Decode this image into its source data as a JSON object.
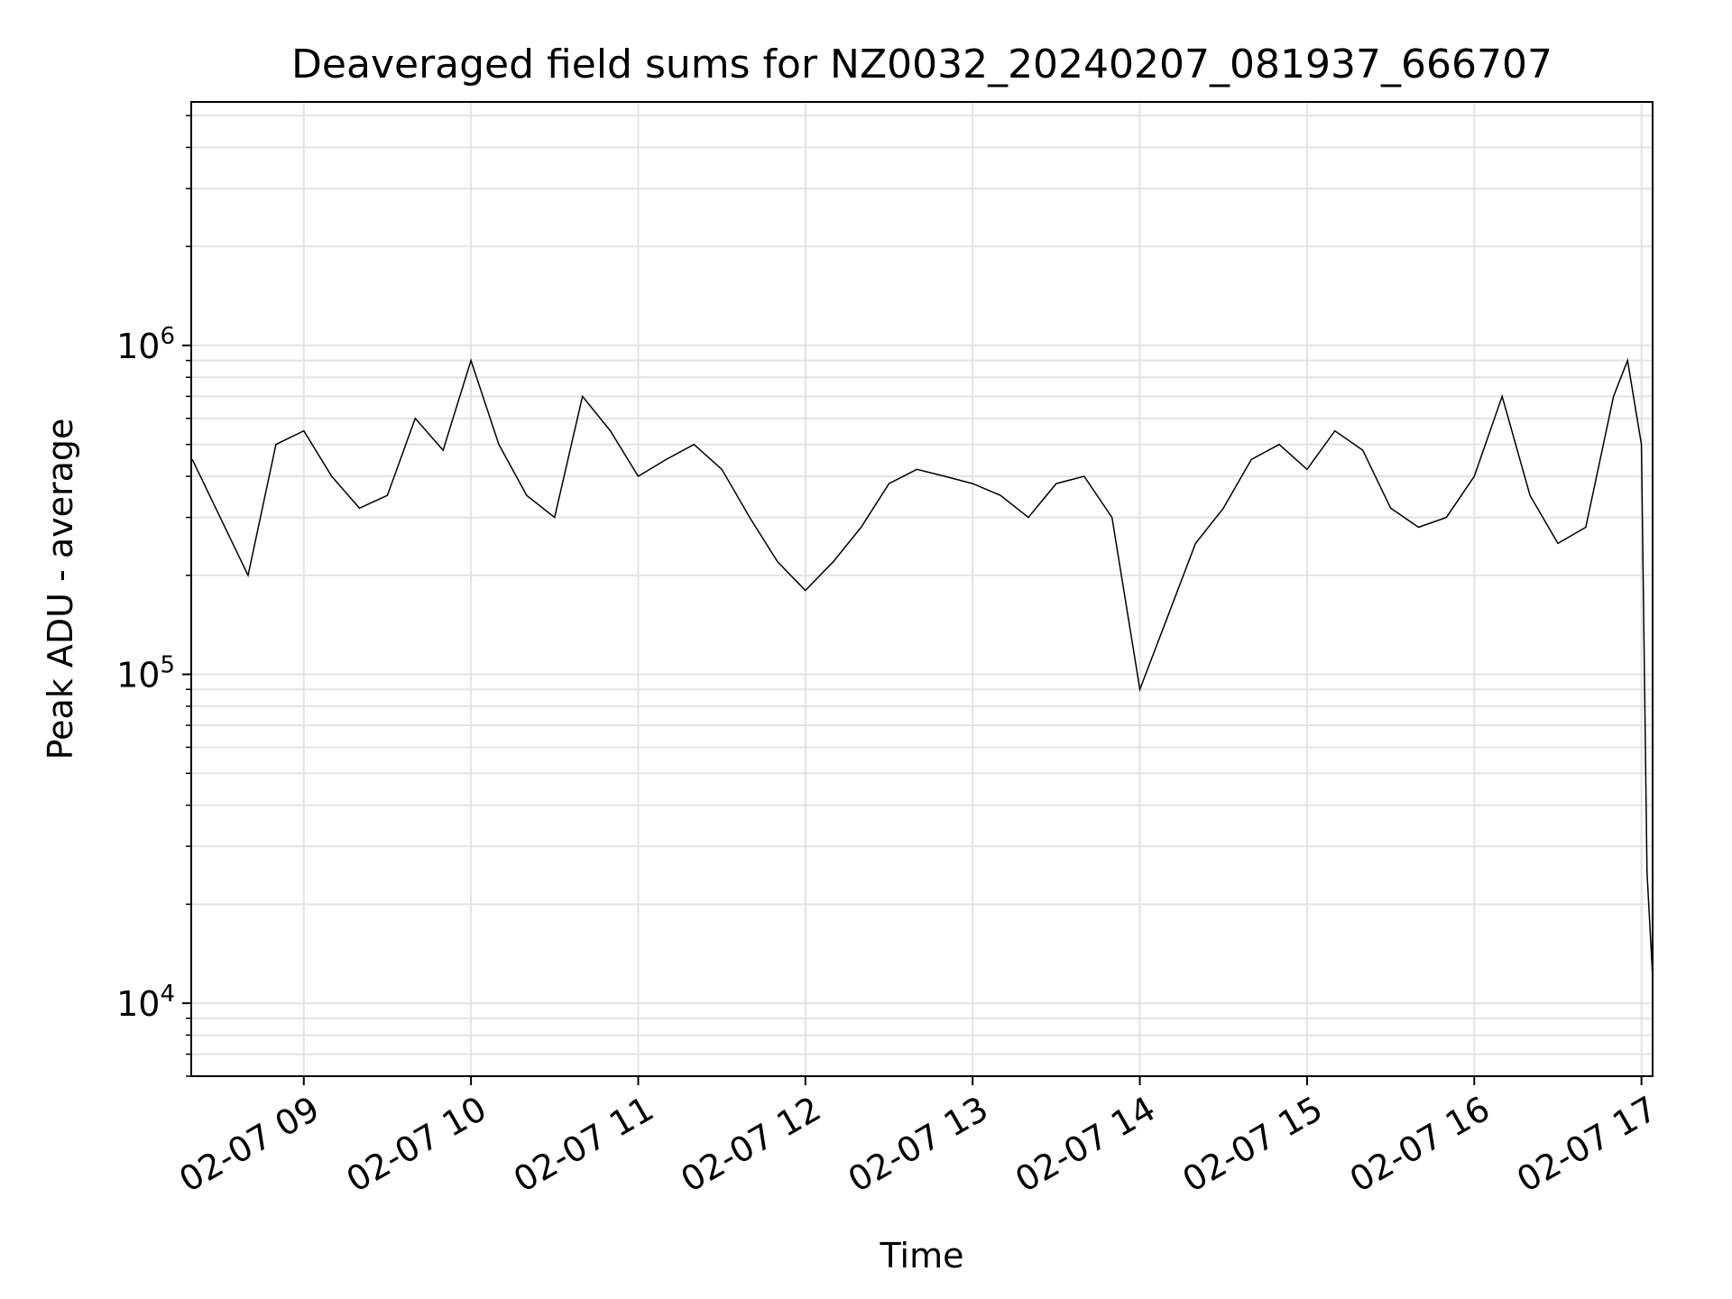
{
  "chart_data": {
    "type": "line",
    "title": "Deaveraged field sums for NZ0032_20240207_081937_666707",
    "xlabel": "Time",
    "ylabel": "Peak ADU - average",
    "y_scale": "log",
    "ylim": [
      6000,
      5500000
    ],
    "xlim": [
      "2024-02-07 08:19:37",
      "2024-02-07 17:04:00"
    ],
    "grid": true,
    "line_color": "#000000",
    "grid_color": "#e3e3e3",
    "x_ticks": [
      {
        "time": "2024-02-07 09:00",
        "label": "02-07 09"
      },
      {
        "time": "2024-02-07 10:00",
        "label": "02-07 10"
      },
      {
        "time": "2024-02-07 11:00",
        "label": "02-07 11"
      },
      {
        "time": "2024-02-07 12:00",
        "label": "02-07 12"
      },
      {
        "time": "2024-02-07 13:00",
        "label": "02-07 13"
      },
      {
        "time": "2024-02-07 14:00",
        "label": "02-07 14"
      },
      {
        "time": "2024-02-07 15:00",
        "label": "02-07 15"
      },
      {
        "time": "2024-02-07 16:00",
        "label": "02-07 16"
      },
      {
        "time": "2024-02-07 17:00",
        "label": "02-07 17"
      }
    ],
    "y_ticks": [
      {
        "value": 10000,
        "base": "10",
        "exp": "4"
      },
      {
        "value": 100000,
        "base": "10",
        "exp": "5"
      },
      {
        "value": 1000000,
        "base": "10",
        "exp": "6"
      }
    ],
    "series": [
      {
        "time": [
          "2024-02-07 08:20",
          "2024-02-07 08:30",
          "2024-02-07 08:40",
          "2024-02-07 08:50",
          "2024-02-07 09:00",
          "2024-02-07 09:10",
          "2024-02-07 09:20",
          "2024-02-07 09:30",
          "2024-02-07 09:40",
          "2024-02-07 09:50",
          "2024-02-07 10:00",
          "2024-02-07 10:10",
          "2024-02-07 10:20",
          "2024-02-07 10:30",
          "2024-02-07 10:40",
          "2024-02-07 10:50",
          "2024-02-07 11:00",
          "2024-02-07 11:10",
          "2024-02-07 11:20",
          "2024-02-07 11:30",
          "2024-02-07 11:40",
          "2024-02-07 11:50",
          "2024-02-07 12:00",
          "2024-02-07 12:10",
          "2024-02-07 12:20",
          "2024-02-07 12:30",
          "2024-02-07 12:40",
          "2024-02-07 12:50",
          "2024-02-07 13:00",
          "2024-02-07 13:10",
          "2024-02-07 13:20",
          "2024-02-07 13:30",
          "2024-02-07 13:40",
          "2024-02-07 13:50",
          "2024-02-07 14:00",
          "2024-02-07 14:10",
          "2024-02-07 14:20",
          "2024-02-07 14:30",
          "2024-02-07 14:40",
          "2024-02-07 14:50",
          "2024-02-07 15:00",
          "2024-02-07 15:10",
          "2024-02-07 15:20",
          "2024-02-07 15:30",
          "2024-02-07 15:40",
          "2024-02-07 15:50",
          "2024-02-07 16:00",
          "2024-02-07 16:10",
          "2024-02-07 16:20",
          "2024-02-07 16:30",
          "2024-02-07 16:40",
          "2024-02-07 16:50",
          "2024-02-07 16:55",
          "2024-02-07 17:00",
          "2024-02-07 17:02",
          "2024-02-07 17:04"
        ],
        "values": [
          450000,
          300000,
          200000,
          500000,
          550000,
          400000,
          320000,
          350000,
          600000,
          480000,
          900000,
          500000,
          350000,
          300000,
          700000,
          550000,
          400000,
          450000,
          500000,
          420000,
          300000,
          220000,
          180000,
          220000,
          280000,
          380000,
          420000,
          400000,
          380000,
          350000,
          300000,
          380000,
          400000,
          300000,
          90000,
          150000,
          250000,
          320000,
          450000,
          500000,
          420000,
          550000,
          480000,
          320000,
          280000,
          300000,
          400000,
          700000,
          350000,
          250000,
          280000,
          700000,
          900000,
          500000,
          25000,
          12000
        ]
      }
    ]
  }
}
